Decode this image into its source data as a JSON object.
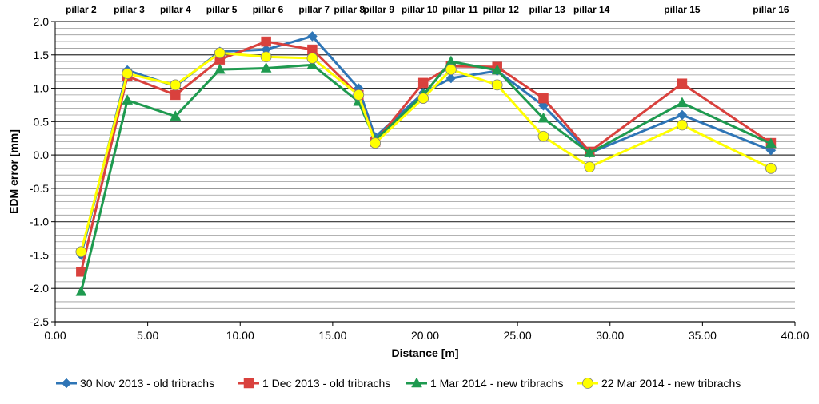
{
  "chart_data": {
    "type": "line",
    "xlabel": "Distance [m]",
    "ylabel": "EDM error [mm]",
    "xlim": [
      0,
      40
    ],
    "ylim": [
      -2.5,
      2.0
    ],
    "x_ticks": [
      "0.00",
      "5.00",
      "10.00",
      "15.00",
      "20.00",
      "25.00",
      "30.00",
      "35.00",
      "40.00"
    ],
    "y_ticks": [
      "2.0",
      "1.5",
      "1.0",
      "0.5",
      "0.0",
      "-0.5",
      "-1.0",
      "-1.5",
      "-2.0",
      "-2.5"
    ],
    "grid": "horizontal",
    "legend_position": "bottom",
    "top_labels": [
      {
        "text": "pillar 2",
        "x": 1.4
      },
      {
        "text": "pillar 3",
        "x": 4.0
      },
      {
        "text": "pillar 4",
        "x": 6.5
      },
      {
        "text": "pillar 5",
        "x": 9.0
      },
      {
        "text": "pillar 6",
        "x": 11.5
      },
      {
        "text": "pillar 7",
        "x": 14.0
      },
      {
        "text": "pillar 8",
        "x": 15.9
      },
      {
        "text": "pillar 9",
        "x": 17.5
      },
      {
        "text": "pillar 10",
        "x": 19.7
      },
      {
        "text": "pillar 11",
        "x": 21.9
      },
      {
        "text": "pillar 12",
        "x": 24.1
      },
      {
        "text": "pillar 13",
        "x": 26.6
      },
      {
        "text": "pillar 14",
        "x": 29.0
      },
      {
        "text": "pillar 15",
        "x": 33.9
      },
      {
        "text": "pillar 16",
        "x": 38.7
      }
    ],
    "x": [
      1.4,
      3.9,
      6.5,
      8.9,
      11.4,
      13.9,
      16.4,
      17.3,
      19.9,
      21.4,
      23.9,
      26.4,
      28.9,
      33.9,
      38.7
    ],
    "series": [
      {
        "name": "30 Nov 2013 - old tribrachs",
        "color": "#2e75b6",
        "marker": "diamond",
        "values": [
          -1.5,
          1.27,
          1.03,
          1.55,
          1.58,
          1.78,
          1.0,
          0.27,
          0.93,
          1.15,
          1.26,
          0.74,
          0.03,
          0.6,
          0.07
        ]
      },
      {
        "name": "1 Dec 2013 - old tribrachs",
        "color": "#d9413d",
        "marker": "square",
        "values": [
          -1.75,
          1.18,
          0.9,
          1.43,
          1.7,
          1.58,
          0.9,
          0.2,
          1.08,
          1.33,
          1.32,
          0.85,
          0.05,
          1.07,
          0.18
        ]
      },
      {
        "name": "1 Mar 2014 - new tribrachs",
        "color": "#1e9a4f",
        "marker": "triangle",
        "values": [
          -2.05,
          0.82,
          0.58,
          1.28,
          1.3,
          1.35,
          0.8,
          0.22,
          0.9,
          1.4,
          1.27,
          0.55,
          0.03,
          0.78,
          0.17
        ]
      },
      {
        "name": "22 Mar 2014 - new tribrachs",
        "color": "#ffff00",
        "marker": "circle",
        "values": [
          -1.45,
          1.22,
          1.05,
          1.53,
          1.47,
          1.45,
          0.9,
          0.18,
          0.85,
          1.28,
          1.05,
          0.28,
          -0.18,
          0.45,
          -0.2
        ]
      }
    ]
  }
}
